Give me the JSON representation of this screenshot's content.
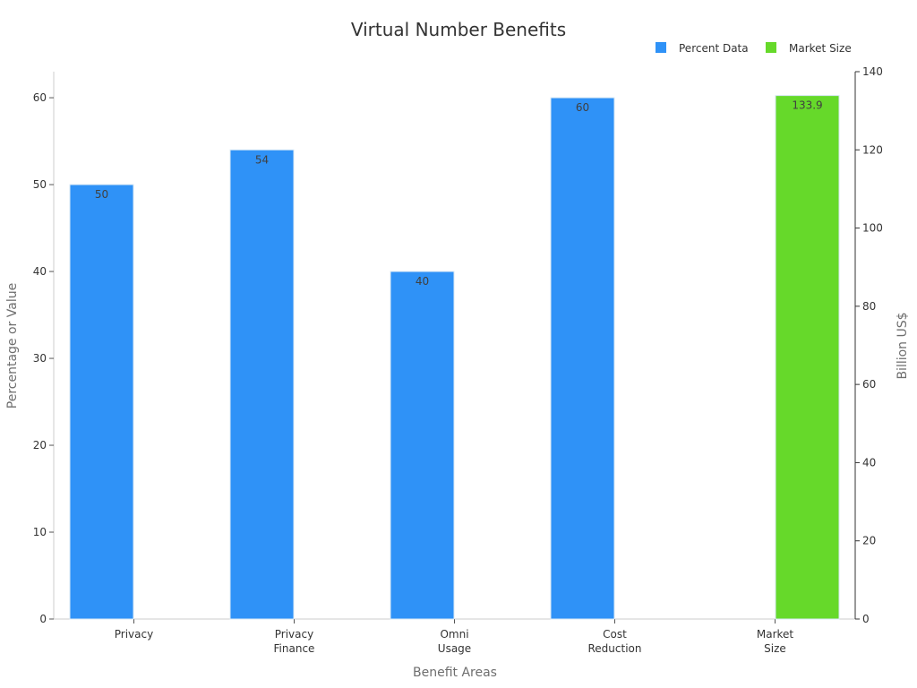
{
  "chart_data": {
    "type": "bar",
    "title": "Virtual Number Benefits",
    "xlabel": "Benefit Areas",
    "ylabel": "Percentage or Value",
    "y2label": "Billion US$",
    "categories": [
      [
        "Privacy"
      ],
      [
        "Privacy",
        "Finance"
      ],
      [
        "Omni",
        "Usage"
      ],
      [
        "Cost",
        "Reduction"
      ],
      [
        "Market",
        "Size"
      ]
    ],
    "series": [
      {
        "name": "Percent Data",
        "color": "#2f92f7",
        "axis": "left",
        "values": [
          50,
          54,
          40,
          60,
          null
        ],
        "labels": [
          "50",
          "54",
          "40",
          "60",
          null
        ]
      },
      {
        "name": "Market Size",
        "color": "#66d92a",
        "axis": "right",
        "values": [
          null,
          null,
          null,
          null,
          133.9
        ],
        "labels": [
          null,
          null,
          null,
          null,
          "133.9"
        ]
      }
    ],
    "ylim": [
      0,
      63
    ],
    "y2lim": [
      0,
      140
    ],
    "yticks": [
      0,
      10,
      20,
      30,
      40,
      50,
      60
    ],
    "y2ticks": [
      0,
      20,
      40,
      60,
      80,
      100,
      120,
      140
    ],
    "legend_position": "top-right",
    "grid": false
  }
}
